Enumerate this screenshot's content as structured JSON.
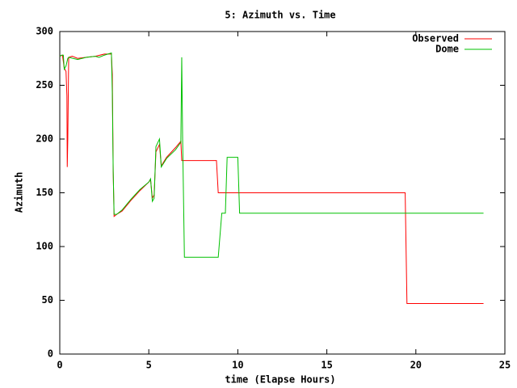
{
  "chart_data": {
    "type": "line",
    "title": "5: Azimuth vs. Time",
    "xlabel": "time (Elapse Hours)",
    "ylabel": "Azimuth",
    "xlim": [
      0,
      25
    ],
    "ylim": [
      0,
      300
    ],
    "xticks": [
      0,
      5,
      10,
      15,
      20,
      25
    ],
    "yticks": [
      0,
      50,
      100,
      150,
      200,
      250,
      300
    ],
    "legend": "top-right",
    "series": [
      {
        "name": "Observed",
        "color": "#ff0000",
        "x": [
          0,
          0.15,
          0.25,
          0.35,
          0.4,
          0.42,
          0.45,
          0.5,
          0.7,
          1,
          1.5,
          2,
          2.5,
          2.9,
          2.95,
          3.0,
          3.05,
          3.2,
          3.5,
          4,
          4.5,
          5,
          5.1,
          5.2,
          5.3,
          5.4,
          5.6,
          5.7,
          6,
          6.5,
          6.8,
          6.85,
          8.8,
          8.9,
          19.4,
          19.5,
          23.8
        ],
        "values": [
          277,
          278,
          266,
          263,
          240,
          174,
          200,
          276,
          277,
          275,
          276,
          277,
          279,
          279,
          260,
          170,
          128,
          130,
          133,
          143,
          152,
          160,
          162,
          145,
          148,
          188,
          195,
          175,
          183,
          192,
          198,
          180,
          180,
          150,
          150,
          47,
          47
        ]
      },
      {
        "name": "Dome",
        "color": "#00c000",
        "x": [
          0,
          0.1,
          0.2,
          0.25,
          0.35,
          0.45,
          0.5,
          1,
          1.5,
          2,
          2.2,
          2.5,
          2.9,
          2.95,
          3.0,
          3.05,
          3.2,
          3.5,
          4,
          4.5,
          5,
          5.1,
          5.2,
          5.3,
          5.4,
          5.6,
          5.7,
          6,
          6.5,
          6.8,
          6.85,
          6.9,
          7.0,
          8.9,
          9.1,
          9.3,
          9.4,
          10,
          10.1,
          23.8
        ],
        "values": [
          277,
          278,
          278,
          265,
          268,
          275,
          276,
          274,
          276,
          277,
          276,
          278,
          280,
          243,
          170,
          130,
          130,
          134,
          144,
          153,
          160,
          163,
          142,
          145,
          193,
          200,
          174,
          182,
          190,
          197,
          276,
          200,
          90,
          90,
          131,
          131,
          183,
          183,
          131,
          131
        ]
      }
    ]
  }
}
